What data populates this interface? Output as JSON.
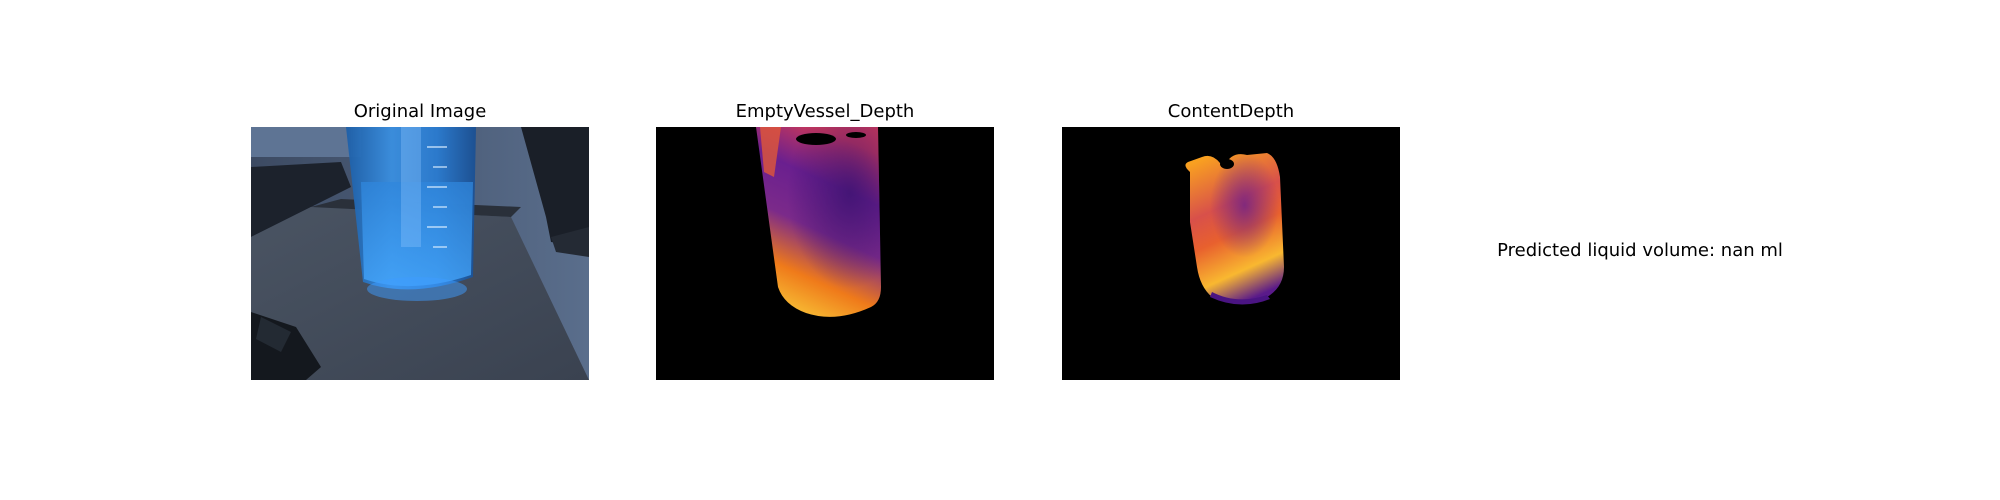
{
  "panels": [
    {
      "title": "Original Image"
    },
    {
      "title": "EmptyVessel_Depth"
    },
    {
      "title": "ContentDepth"
    }
  ],
  "result": {
    "text": "Predicted liquid volume: nan ml"
  },
  "colors": {
    "background": "#ffffff",
    "depth_background": "#000000",
    "colormap": [
      "#1b0c41",
      "#4a0c6b",
      "#781c6d",
      "#a52c60",
      "#cf4446",
      "#ed6925",
      "#fb9b06",
      "#f7d13d",
      "#fcffa4"
    ]
  }
}
